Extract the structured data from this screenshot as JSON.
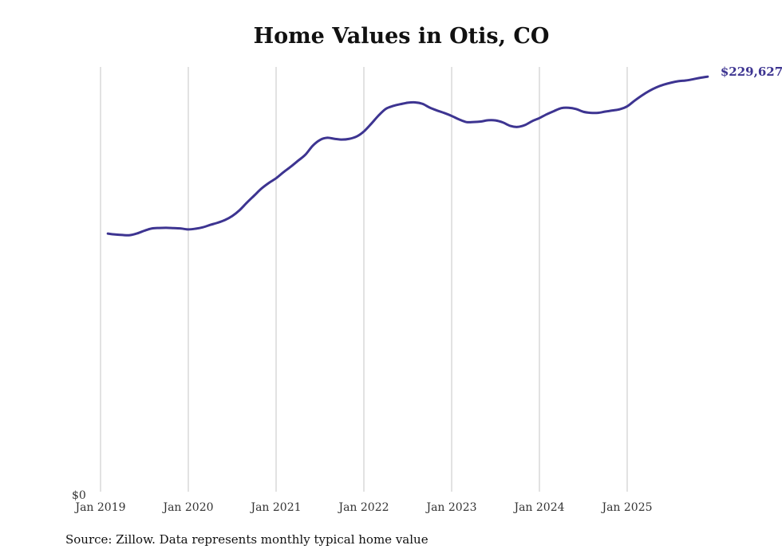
{
  "chart_data": {
    "type": "line",
    "title": "Home Values in Otis, CO",
    "xlabel": "",
    "ylabel": "",
    "grid": "vertical",
    "ylim": [
      0,
      235000
    ],
    "y_tick_labels": [
      {
        "value": 0,
        "label": "$0"
      }
    ],
    "x_ticks": [
      {
        "value": 2019.0,
        "label": "Jan 2019"
      },
      {
        "value": 2020.0,
        "label": "Jan 2020"
      },
      {
        "value": 2021.0,
        "label": "Jan 2021"
      },
      {
        "value": 2022.0,
        "label": "Jan 2022"
      },
      {
        "value": 2023.0,
        "label": "Jan 2023"
      },
      {
        "value": 2024.0,
        "label": "Jan 2024"
      },
      {
        "value": 2025.0,
        "label": "Jan 2025"
      }
    ],
    "xlim": [
      2019.0,
      2025.95
    ],
    "line_color": "#3d3491",
    "end_label": "$229,627",
    "series": [
      {
        "name": "Typical home value",
        "points": [
          [
            2019.083,
            142800
          ],
          [
            2019.167,
            142300
          ],
          [
            2019.25,
            142000
          ],
          [
            2019.333,
            141900
          ],
          [
            2019.417,
            142900
          ],
          [
            2019.5,
            144400
          ],
          [
            2019.583,
            145600
          ],
          [
            2019.667,
            145900
          ],
          [
            2019.75,
            146000
          ],
          [
            2019.833,
            145800
          ],
          [
            2019.917,
            145600
          ],
          [
            2020.0,
            145100
          ],
          [
            2020.083,
            145500
          ],
          [
            2020.167,
            146300
          ],
          [
            2020.25,
            147600
          ],
          [
            2020.333,
            148800
          ],
          [
            2020.417,
            150300
          ],
          [
            2020.5,
            152500
          ],
          [
            2020.583,
            155700
          ],
          [
            2020.667,
            159900
          ],
          [
            2020.75,
            163800
          ],
          [
            2020.833,
            167700
          ],
          [
            2020.917,
            170800
          ],
          [
            2021.0,
            173400
          ],
          [
            2021.083,
            176700
          ],
          [
            2021.167,
            179800
          ],
          [
            2021.25,
            183100
          ],
          [
            2021.333,
            186400
          ],
          [
            2021.417,
            191400
          ],
          [
            2021.5,
            194600
          ],
          [
            2021.583,
            195800
          ],
          [
            2021.667,
            195200
          ],
          [
            2021.75,
            194800
          ],
          [
            2021.833,
            195200
          ],
          [
            2021.917,
            196500
          ],
          [
            2022.0,
            199300
          ],
          [
            2022.083,
            203500
          ],
          [
            2022.167,
            208100
          ],
          [
            2022.25,
            211800
          ],
          [
            2022.333,
            213400
          ],
          [
            2022.417,
            214400
          ],
          [
            2022.5,
            215200
          ],
          [
            2022.583,
            215400
          ],
          [
            2022.667,
            214600
          ],
          [
            2022.75,
            212500
          ],
          [
            2022.833,
            210900
          ],
          [
            2022.917,
            209500
          ],
          [
            2023.0,
            207900
          ],
          [
            2023.083,
            206000
          ],
          [
            2023.167,
            204500
          ],
          [
            2023.25,
            204500
          ],
          [
            2023.333,
            204800
          ],
          [
            2023.417,
            205500
          ],
          [
            2023.5,
            205400
          ],
          [
            2023.583,
            204300
          ],
          [
            2023.667,
            202400
          ],
          [
            2023.75,
            201800
          ],
          [
            2023.833,
            202800
          ],
          [
            2023.917,
            205000
          ],
          [
            2024.0,
            206700
          ],
          [
            2024.083,
            208800
          ],
          [
            2024.167,
            210600
          ],
          [
            2024.25,
            212200
          ],
          [
            2024.333,
            212400
          ],
          [
            2024.417,
            211700
          ],
          [
            2024.5,
            210200
          ],
          [
            2024.583,
            209600
          ],
          [
            2024.667,
            209600
          ],
          [
            2024.75,
            210300
          ],
          [
            2024.833,
            210900
          ],
          [
            2024.917,
            211600
          ],
          [
            2025.0,
            213200
          ],
          [
            2025.083,
            216300
          ],
          [
            2025.167,
            219200
          ],
          [
            2025.25,
            221700
          ],
          [
            2025.333,
            223700
          ],
          [
            2025.417,
            225200
          ],
          [
            2025.5,
            226300
          ],
          [
            2025.583,
            227100
          ],
          [
            2025.667,
            227500
          ],
          [
            2025.75,
            228200
          ],
          [
            2025.833,
            229000
          ],
          [
            2025.917,
            229627
          ]
        ]
      }
    ]
  },
  "source_note": "Source: Zillow. Data represents monthly typical home value"
}
